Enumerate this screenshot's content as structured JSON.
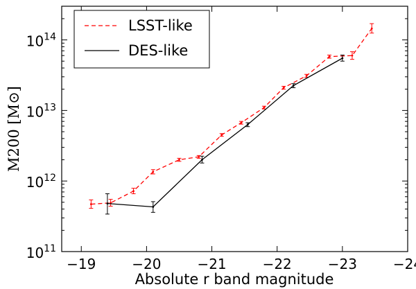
{
  "chart_data": {
    "type": "line",
    "xlabel": "Absolute r band magnitude",
    "ylabel": "M200 [M⊙]",
    "xlim": [
      -18.7,
      -24.0
    ],
    "ylim": [
      100000000000.0,
      300000000000000.0
    ],
    "yscale": "log",
    "x_inverted": true,
    "grid": false,
    "legend_position": "top-left",
    "xticks": [
      {
        "value": -19,
        "label": "−19"
      },
      {
        "value": -20,
        "label": "−20"
      },
      {
        "value": -21,
        "label": "−21"
      },
      {
        "value": -22,
        "label": "−22"
      },
      {
        "value": -23,
        "label": "−23"
      },
      {
        "value": -24,
        "label": "−24"
      }
    ],
    "yticks": [
      {
        "value": 100000000000.0,
        "mant": "10",
        "exp": "11"
      },
      {
        "value": 1000000000000.0,
        "mant": "10",
        "exp": "12"
      },
      {
        "value": 10000000000000.0,
        "mant": "10",
        "exp": "13"
      },
      {
        "value": 100000000000000.0,
        "mant": "10",
        "exp": "14"
      }
    ],
    "series": [
      {
        "name": "LSST-like",
        "color": "#ff0000",
        "dash": "dashed",
        "points": [
          {
            "x": -19.15,
            "y": 470000000000.0,
            "lo": 410000000000.0,
            "hi": 540000000000.0
          },
          {
            "x": -19.45,
            "y": 490000000000.0,
            "lo": 440000000000.0,
            "hi": 550000000000.0
          },
          {
            "x": -19.8,
            "y": 720000000000.0,
            "lo": 660000000000.0,
            "hi": 790000000000.0
          },
          {
            "x": -20.1,
            "y": 1350000000000.0,
            "lo": 1260000000000.0,
            "hi": 1450000000000.0
          },
          {
            "x": -20.5,
            "y": 2000000000000.0,
            "lo": 1900000000000.0,
            "hi": 2100000000000.0
          },
          {
            "x": -20.8,
            "y": 2200000000000.0,
            "lo": 2100000000000.0,
            "hi": 2300000000000.0
          },
          {
            "x": -21.15,
            "y": 4500000000000.0,
            "lo": 4300000000000.0,
            "hi": 4700000000000.0
          },
          {
            "x": -21.45,
            "y": 6700000000000.0,
            "lo": 6400000000000.0,
            "hi": 7000000000000.0
          },
          {
            "x": -21.8,
            "y": 11000000000000.0,
            "lo": 10500000000000.0,
            "hi": 11500000000000.0
          },
          {
            "x": -22.1,
            "y": 21000000000000.0,
            "lo": 20000000000000.0,
            "hi": 22000000000000.0
          },
          {
            "x": -22.45,
            "y": 31000000000000.0,
            "lo": 29500000000000.0,
            "hi": 32500000000000.0
          },
          {
            "x": -22.8,
            "y": 58000000000000.0,
            "lo": 55000000000000.0,
            "hi": 61000000000000.0
          },
          {
            "x": -23.15,
            "y": 60000000000000.0,
            "lo": 53000000000000.0,
            "hi": 68000000000000.0
          },
          {
            "x": -23.45,
            "y": 145000000000000.0,
            "lo": 125000000000000.0,
            "hi": 170000000000000.0
          }
        ]
      },
      {
        "name": "DES-like",
        "color": "#000000",
        "dash": "solid",
        "points": [
          {
            "x": -19.4,
            "y": 480000000000.0,
            "lo": 340000000000.0,
            "hi": 660000000000.0
          },
          {
            "x": -20.1,
            "y": 430000000000.0,
            "lo": 360000000000.0,
            "hi": 510000000000.0
          },
          {
            "x": -20.85,
            "y": 2000000000000.0,
            "lo": 1800000000000.0,
            "hi": 2250000000000.0
          },
          {
            "x": -21.55,
            "y": 6300000000000.0,
            "lo": 5900000000000.0,
            "hi": 6700000000000.0
          },
          {
            "x": -22.25,
            "y": 22500000000000.0,
            "lo": 21000000000000.0,
            "hi": 24000000000000.0
          },
          {
            "x": -23.0,
            "y": 55000000000000.0,
            "lo": 50000000000000.0,
            "hi": 61000000000000.0
          }
        ]
      }
    ]
  }
}
